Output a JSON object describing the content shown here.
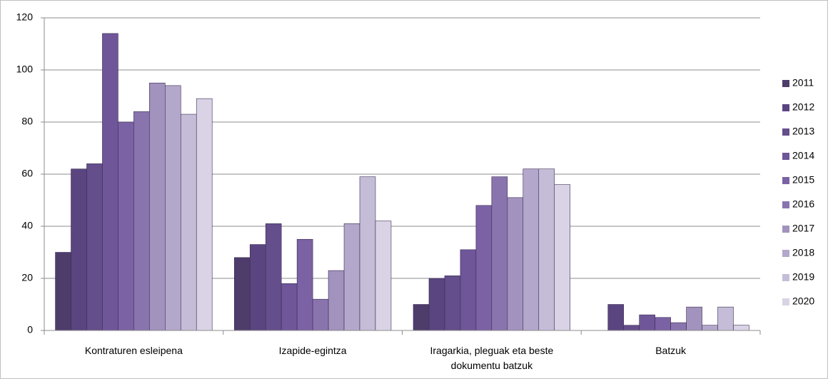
{
  "chart_data": {
    "type": "bar",
    "categories": [
      "Kontraturen esleipena",
      "Izapide-egintza",
      "Iragarkia, pleguak eta beste dokumentu batzuk",
      "Batzuk"
    ],
    "series": [
      {
        "name": "2011",
        "color": "#4e3d6b",
        "values": [
          30,
          28,
          10,
          0
        ]
      },
      {
        "name": "2012",
        "color": "#5a4580",
        "values": [
          62,
          33,
          20,
          10
        ]
      },
      {
        "name": "2013",
        "color": "#644e8b",
        "values": [
          64,
          41,
          21,
          2
        ]
      },
      {
        "name": "2014",
        "color": "#6f5699",
        "values": [
          114,
          18,
          31,
          6
        ]
      },
      {
        "name": "2015",
        "color": "#7b62a4",
        "values": [
          80,
          35,
          48,
          5
        ]
      },
      {
        "name": "2016",
        "color": "#8a74ae",
        "values": [
          84,
          12,
          59,
          3
        ]
      },
      {
        "name": "2017",
        "color": "#a193bd",
        "values": [
          95,
          23,
          51,
          9
        ]
      },
      {
        "name": "2018",
        "color": "#b3a8cb",
        "values": [
          94,
          41,
          62,
          2
        ]
      },
      {
        "name": "2019",
        "color": "#c5bdd8",
        "values": [
          83,
          59,
          62,
          9
        ]
      },
      {
        "name": "2020",
        "color": "#d9d3e5",
        "values": [
          89,
          42,
          56,
          2
        ]
      }
    ],
    "ylim": [
      0,
      120
    ],
    "yticks": [
      0,
      20,
      40,
      60,
      80,
      100,
      120
    ],
    "grid": true,
    "legend": "right"
  }
}
